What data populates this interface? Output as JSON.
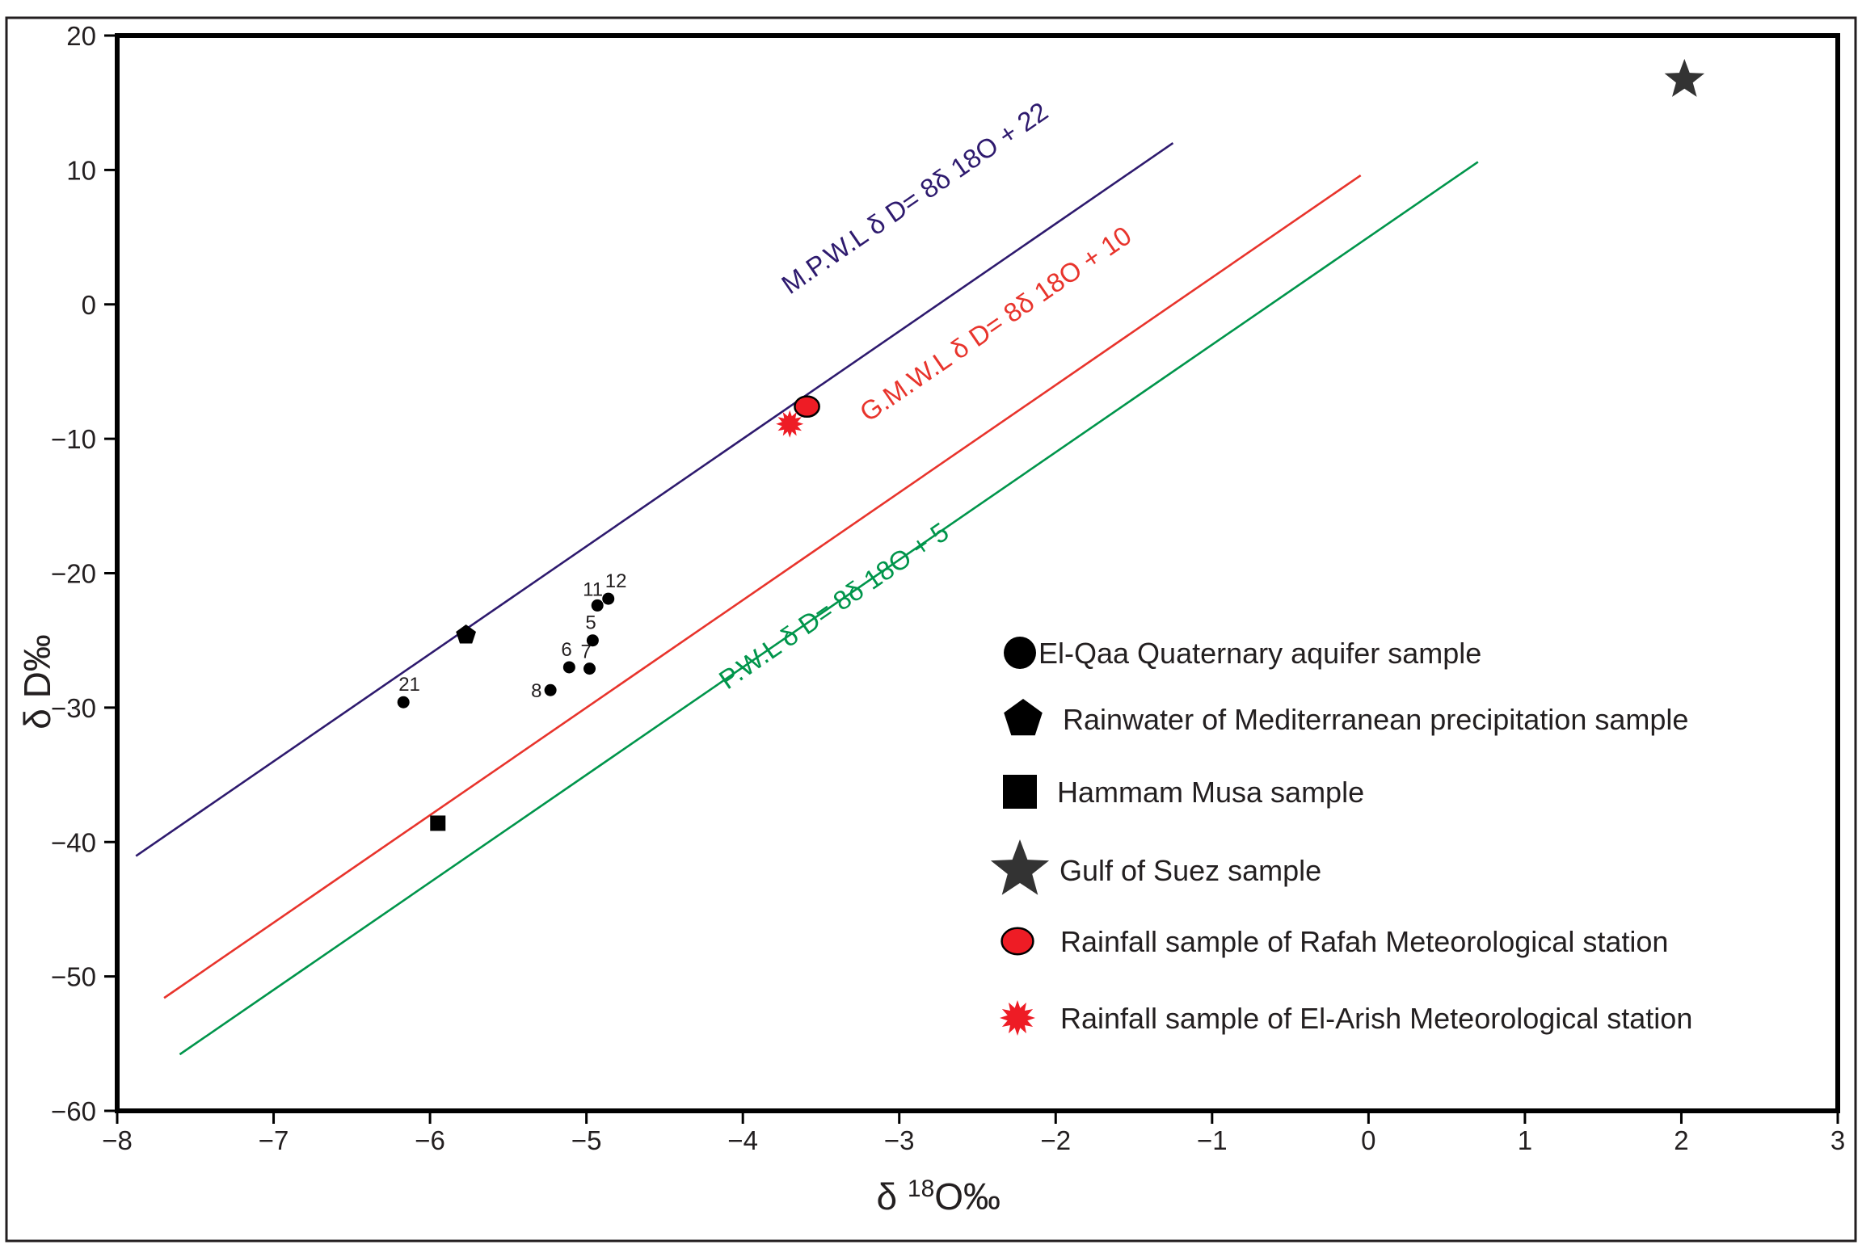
{
  "chart_data": {
    "type": "scatter",
    "xlabel": {
      "prefix": "δ ",
      "sup": "18",
      "suffix": "O‰"
    },
    "ylabel": "δ D‰",
    "xlim": [
      -8,
      3
    ],
    "ylim": [
      -60,
      20
    ],
    "x_ticks": [
      -8,
      -7,
      -6,
      -5,
      -4,
      -3,
      -2,
      -1,
      0,
      1,
      2,
      3
    ],
    "y_ticks": [
      20,
      10,
      0,
      -10,
      -20,
      -30,
      -40,
      -50,
      -60
    ],
    "x_tick_labels": [
      "−8",
      "−7",
      "−6",
      "−5",
      "−4",
      "−3",
      "−2",
      "−1",
      "0",
      "1",
      "2",
      "3"
    ],
    "y_tick_labels": [
      "20",
      "10",
      "0",
      "−10",
      "−20",
      "−30",
      "−40",
      "−50",
      "−60"
    ],
    "lines": [
      {
        "name": "M.P.W.L",
        "label": "M.P.W.L δ D= 8δ 18O + 22",
        "slope": 8,
        "intercept": 22,
        "x_range": [
          -7.88,
          -1.25
        ],
        "color": "#2e1a6e",
        "label_at": {
          "x": -3.7,
          "y": 0.7
        }
      },
      {
        "name": "G.M.W.L",
        "label": "G.M.W.L  δ D= 8δ 18O + 10",
        "slope": 8,
        "intercept": 10,
        "x_range": [
          -7.7,
          -0.05
        ],
        "color": "#e8342c",
        "label_at": {
          "x": -3.2,
          "y": -8.8
        }
      },
      {
        "name": "P.W.L",
        "label": "P.W.L δ D= 8δ 18O + 5",
        "slope": 8,
        "intercept": 5,
        "x_range": [
          -7.6,
          0.7
        ],
        "color": "#00954b",
        "label_at": {
          "x": -4.1,
          "y": -28.7
        }
      }
    ],
    "series": [
      {
        "name": "El-Qaa Quaternary aquifer sample",
        "marker": "circle",
        "color": "#000000",
        "points": [
          {
            "x": -6.17,
            "y": -29.6,
            "label": "21"
          },
          {
            "x": -5.23,
            "y": -28.7,
            "label": "8"
          },
          {
            "x": -5.11,
            "y": -27.0,
            "label": "6"
          },
          {
            "x": -4.98,
            "y": -27.1,
            "label": "7"
          },
          {
            "x": -4.96,
            "y": -25.0,
            "label": "5"
          },
          {
            "x": -4.93,
            "y": -22.4,
            "label": "11"
          },
          {
            "x": -4.86,
            "y": -21.9,
            "label": "12"
          }
        ]
      },
      {
        "name": "Rainwater of Mediterranean precipitation sample",
        "marker": "pentagon",
        "color": "#000000",
        "points": [
          {
            "x": -5.77,
            "y": -24.6
          }
        ]
      },
      {
        "name": "Hammam Musa sample",
        "marker": "square",
        "color": "#000000",
        "points": [
          {
            "x": -5.95,
            "y": -38.6
          }
        ]
      },
      {
        "name": "Gulf of Suez sample",
        "marker": "star",
        "color": "#333333",
        "points": [
          {
            "x": 2.02,
            "y": 16.7
          }
        ]
      },
      {
        "name": "Rainfall sample of Rafah Meteorological station",
        "marker": "red-circle",
        "color": "#ee1c25",
        "points": [
          {
            "x": -3.59,
            "y": -7.6
          }
        ]
      },
      {
        "name": "Rainfall sample of El-Arish Meteorological station",
        "marker": "burst",
        "color": "#ee1c25",
        "points": [
          {
            "x": -3.7,
            "y": -8.9
          }
        ]
      }
    ],
    "legend": {
      "placement": "lower-right",
      "items": [
        {
          "label": "El-Qaa Quaternary aquifer sample",
          "marker": "circle"
        },
        {
          "label": "Rainwater of Mediterranean precipitation sample",
          "marker": "pentagon"
        },
        {
          "label": "Hammam Musa sample",
          "marker": "square"
        },
        {
          "label": "Gulf of Suez sample",
          "marker": "star"
        },
        {
          "label": "Rainfall sample of Rafah Meteorological station",
          "marker": "red-circle"
        },
        {
          "label": "Rainfall sample of El-Arish Meteorological station",
          "marker": "burst"
        }
      ]
    }
  }
}
